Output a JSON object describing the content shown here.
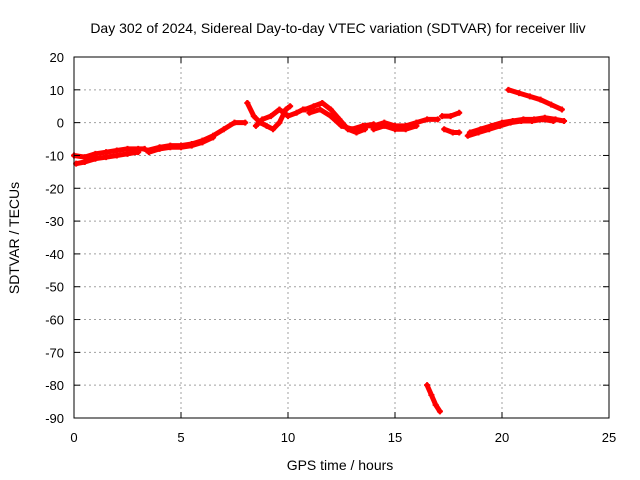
{
  "chart_data": {
    "type": "scatter",
    "title": "Day 302 of 2024, Sidereal Day-to-day VTEC variation (SDTVAR) for receiver lliv",
    "xlabel": "GPS time / hours",
    "ylabel": "SDTVAR / TECUs",
    "xlim": [
      0,
      25
    ],
    "ylim": [
      -90,
      20
    ],
    "xticks": [
      0,
      5,
      10,
      15,
      20,
      25
    ],
    "yticks": [
      -90,
      -80,
      -70,
      -60,
      -50,
      -40,
      -30,
      -20,
      -10,
      0,
      10,
      20
    ],
    "grid": true,
    "legend": "none",
    "series_color": "#ff0000",
    "series": [
      {
        "segments": [
          [
            [
              0.0,
              -10
            ],
            [
              0.5,
              -10.5
            ],
            [
              1.0,
              -9.5
            ],
            [
              1.5,
              -9
            ],
            [
              2.0,
              -8.5
            ],
            [
              2.5,
              -8
            ],
            [
              3.0,
              -8
            ],
            [
              3.3,
              -8
            ]
          ],
          [
            [
              0.1,
              -12.5
            ],
            [
              0.5,
              -12
            ],
            [
              1.0,
              -11
            ],
            [
              1.5,
              -10.5
            ],
            [
              2.0,
              -10
            ],
            [
              2.5,
              -9.5
            ],
            [
              3.0,
              -9
            ]
          ],
          [
            [
              3.4,
              -8.5
            ],
            [
              4.0,
              -7.5
            ],
            [
              4.5,
              -7
            ],
            [
              5.0,
              -7
            ],
            [
              5.5,
              -6.5
            ],
            [
              6.0,
              -5.5
            ],
            [
              6.5,
              -4
            ],
            [
              7.0,
              -2
            ],
            [
              7.5,
              0
            ],
            [
              8.0,
              0
            ]
          ],
          [
            [
              3.5,
              -9
            ],
            [
              4.0,
              -8
            ],
            [
              4.5,
              -7.5
            ],
            [
              5.0,
              -7.5
            ],
            [
              5.5,
              -7
            ],
            [
              6.0,
              -6
            ],
            [
              6.5,
              -4.5
            ]
          ],
          [
            [
              8.1,
              6
            ],
            [
              8.4,
              2
            ],
            [
              8.7,
              0
            ],
            [
              9.0,
              -1
            ],
            [
              9.3,
              -2
            ],
            [
              9.6,
              0
            ],
            [
              9.9,
              4
            ],
            [
              10.1,
              5
            ]
          ],
          [
            [
              8.5,
              -1
            ],
            [
              8.8,
              1
            ],
            [
              9.2,
              2
            ],
            [
              9.6,
              4
            ],
            [
              10.0,
              2
            ],
            [
              10.4,
              3
            ],
            [
              10.7,
              4
            ]
          ],
          [
            [
              10.8,
              4
            ],
            [
              11.2,
              5
            ],
            [
              11.6,
              6
            ],
            [
              12.0,
              4
            ],
            [
              12.4,
              1
            ],
            [
              12.8,
              -2
            ],
            [
              13.2,
              -3
            ],
            [
              13.6,
              -2
            ]
          ],
          [
            [
              11.0,
              3
            ],
            [
              11.5,
              4
            ],
            [
              12.0,
              2
            ],
            [
              12.5,
              -1
            ],
            [
              13.0,
              -2
            ],
            [
              13.5,
              -1
            ],
            [
              14.0,
              -0.5
            ]
          ],
          [
            [
              13.5,
              -1
            ],
            [
              14.0,
              -1
            ],
            [
              14.5,
              0
            ],
            [
              15.0,
              -1
            ],
            [
              15.5,
              -1
            ],
            [
              16.0,
              0
            ],
            [
              16.5,
              1
            ],
            [
              17.0,
              1
            ]
          ],
          [
            [
              14.0,
              -2
            ],
            [
              14.5,
              -1
            ],
            [
              15.0,
              -2
            ],
            [
              15.5,
              -2
            ],
            [
              16.0,
              -1
            ]
          ],
          [
            [
              17.2,
              2
            ],
            [
              17.6,
              2
            ],
            [
              18.0,
              3
            ]
          ],
          [
            [
              17.3,
              -2
            ],
            [
              17.7,
              -3
            ],
            [
              18.0,
              -3
            ]
          ],
          [
            [
              18.5,
              -3
            ],
            [
              19.0,
              -2
            ],
            [
              19.5,
              -1
            ],
            [
              20.0,
              0
            ],
            [
              20.5,
              0.5
            ],
            [
              21.0,
              1
            ],
            [
              21.5,
              1
            ],
            [
              22.0,
              1.5
            ],
            [
              22.5,
              1
            ],
            [
              22.9,
              0.5
            ]
          ],
          [
            [
              18.4,
              -4
            ],
            [
              18.9,
              -3
            ],
            [
              19.4,
              -2
            ],
            [
              19.9,
              -1
            ],
            [
              20.4,
              0
            ],
            [
              20.9,
              0.5
            ],
            [
              21.4,
              0.5
            ],
            [
              21.9,
              1
            ],
            [
              22.4,
              0.5
            ]
          ],
          [
            [
              20.3,
              10
            ],
            [
              20.8,
              9
            ],
            [
              21.3,
              8
            ],
            [
              21.8,
              7
            ],
            [
              22.3,
              5.5
            ],
            [
              22.8,
              4
            ]
          ],
          [
            [
              16.5,
              -80
            ],
            [
              16.7,
              -83
            ],
            [
              16.9,
              -86
            ],
            [
              17.1,
              -88
            ]
          ]
        ]
      }
    ]
  }
}
